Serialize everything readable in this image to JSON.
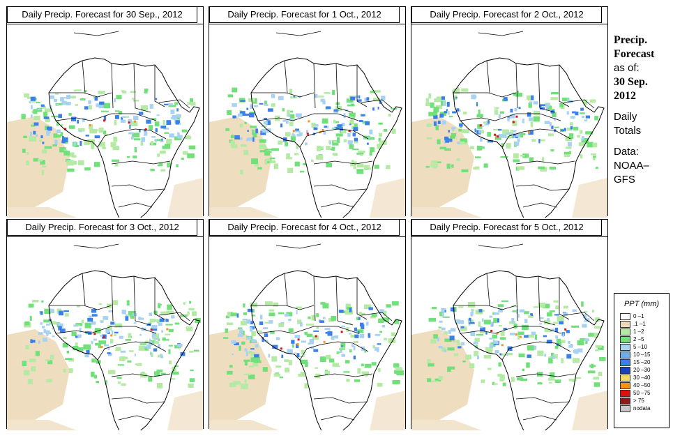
{
  "panels": [
    {
      "title": "Daily Precip. Forecast for  30 Sep., 2012"
    },
    {
      "title": "Daily Precip. Forecast for  1 Oct., 2012"
    },
    {
      "title": "Daily Precip. Forecast for  2 Oct., 2012"
    },
    {
      "title": "Daily Precip. Forecast for  3 Oct., 2012"
    },
    {
      "title": "Daily Precip. Forecast for  4 Oct., 2012"
    },
    {
      "title": "Daily Precip. Forecast for  5 Oct., 2012"
    }
  ],
  "side": {
    "title_line1": "Precip.",
    "title_line2": "Forecast",
    "asof": "as of:",
    "date_line1": "30 Sep.",
    "date_line2": "2012",
    "daily_line1": "Daily",
    "daily_line2": "Totals",
    "data_line1": "Data:",
    "data_line2": "NOAA–",
    "data_line3": "GFS"
  },
  "legend": {
    "title": "PPT (mm)",
    "items": [
      {
        "label": "0 –1",
        "color": "#ffffff"
      },
      {
        "label": ".1 –1",
        "color": "#ecd9b8"
      },
      {
        "label": "1 –2",
        "color": "#b5eaa5"
      },
      {
        "label": "2 –5",
        "color": "#72e07a"
      },
      {
        "label": "5 –10",
        "color": "#a9d2f2"
      },
      {
        "label": "10 –15",
        "color": "#6ab0ee"
      },
      {
        "label": "15 –20",
        "color": "#3a80e8"
      },
      {
        "label": "20 –30",
        "color": "#1a40c0"
      },
      {
        "label": "30 –40",
        "color": "#f8d860"
      },
      {
        "label": "40 –50",
        "color": "#f89020"
      },
      {
        "label": "50 –75",
        "color": "#e01010"
      },
      {
        "label": "> 75",
        "color": "#901818"
      },
      {
        "label": "nodata",
        "color": "#c8c8c8"
      }
    ]
  },
  "colors": {
    "desert": "#ecd9b8",
    "light_green": "#b5eaa5",
    "green": "#72e07a",
    "light_blue": "#a9d2f2",
    "blue": "#3a80e8",
    "red": "#e01010",
    "orange": "#f89020"
  }
}
